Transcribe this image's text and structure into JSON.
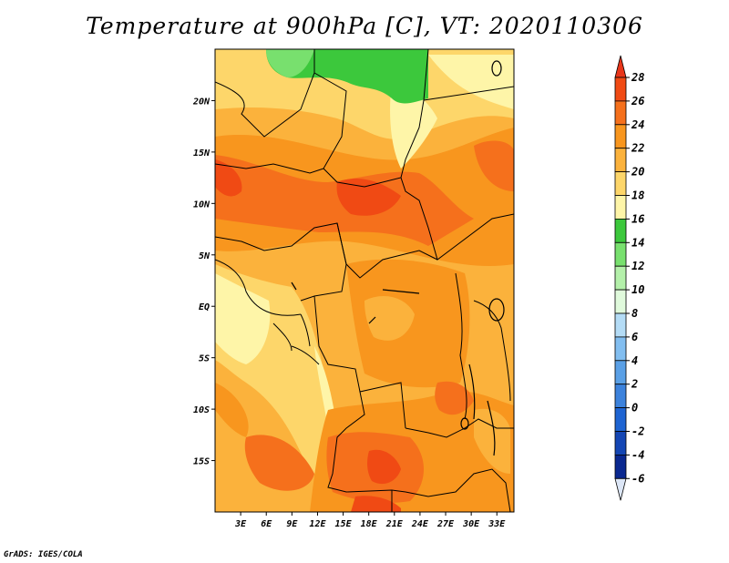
{
  "title": "Temperature at 900hPa [C], VT: 2020110306",
  "credit": "GrADS: IGES/COLA",
  "map": {
    "lon_range": [
      0,
      35
    ],
    "lat_range": [
      -20,
      25
    ],
    "lat_labels": [
      "20N",
      "15N",
      "10N",
      "5N",
      "EQ",
      "5S",
      "10S",
      "15S"
    ],
    "lat_values": [
      20,
      15,
      10,
      5,
      0,
      -5,
      -10,
      -15
    ],
    "lon_labels": [
      "3E",
      "6E",
      "9E",
      "12E",
      "15E",
      "18E",
      "21E",
      "24E",
      "27E",
      "30E",
      "33E"
    ],
    "lon_values": [
      3,
      6,
      9,
      12,
      15,
      18,
      21,
      24,
      27,
      30,
      33
    ]
  },
  "colorbar": {
    "labels": [
      "28",
      "26",
      "24",
      "22",
      "20",
      "18",
      "16",
      "14",
      "12",
      "10",
      "8",
      "6",
      "4",
      "2",
      "0",
      "-2",
      "-4",
      "-6"
    ],
    "colors": {
      "above": "#e8361a",
      "c26_28": "#f04a14",
      "c24_26": "#f5701c",
      "c22_24": "#f8961e",
      "c20_22": "#fbb23c",
      "c18_20": "#fdd66a",
      "c16_18": "#fef5a8",
      "c14_16": "#3cc83c",
      "c12_14": "#78e06e",
      "c10_12": "#b4f0aa",
      "c8_10": "#e0fadc",
      "c6_8": "#b4dcf6",
      "c4_6": "#82bef0",
      "c2_4": "#5aa0e6",
      "c0_2": "#3c82dc",
      "cm2_0": "#1e64d2",
      "cm4_m2": "#1446b4",
      "cm6_m4": "#0a2890",
      "below": "#dce6f6"
    }
  }
}
